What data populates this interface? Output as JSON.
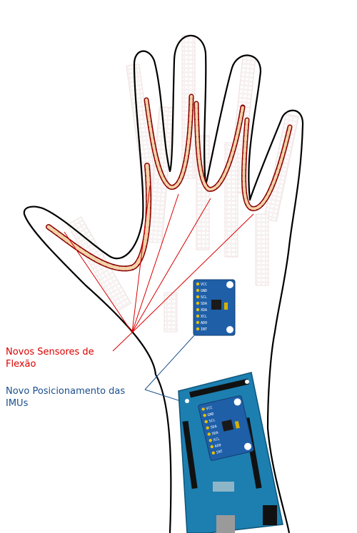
{
  "labels": {
    "flex_sensors_line1": "Novos Sensores de",
    "flex_sensors_line2": "Flexão",
    "imu_position_line1": "Novo Posicionamento das",
    "imu_position_line2": "IMUs"
  },
  "imu_board": {
    "pins": [
      "VCC",
      "GND",
      "SCL",
      "SDA",
      "XDA",
      "XCL",
      "AD0",
      "INT"
    ]
  },
  "colors": {
    "flex_annotation": "#d90000",
    "imu_annotation": "#1b4f8c",
    "sensor_fill": "#f3d2a8",
    "sensor_outline": "#8a0000",
    "board_blue": "#1f5fa8",
    "arduino_blue": "#1c7fb0"
  }
}
